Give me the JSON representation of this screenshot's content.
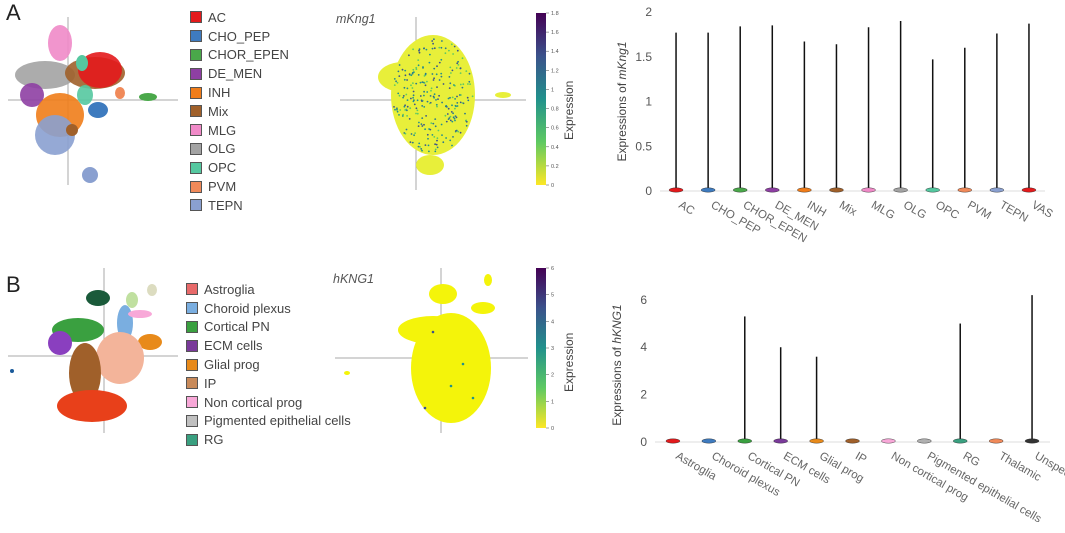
{
  "figure": {
    "panel_a": {
      "label": "A",
      "gene": "mKng1",
      "legend": [
        {
          "name": "AC",
          "color": "#e31a1c"
        },
        {
          "name": "CHO_PEP",
          "color": "#3e7bbf"
        },
        {
          "name": "CHOR_EPEN",
          "color": "#4aa84a"
        },
        {
          "name": "DE_MEN",
          "color": "#8e3fa3"
        },
        {
          "name": "INH",
          "color": "#f07d1a"
        },
        {
          "name": "Mix",
          "color": "#a0602a"
        },
        {
          "name": "MLG",
          "color": "#f08ac8"
        },
        {
          "name": "OLG",
          "color": "#a3a3a3"
        },
        {
          "name": "OPC",
          "color": "#55c8a0"
        },
        {
          "name": "PVM",
          "color": "#f08a5a"
        },
        {
          "name": "TEPN",
          "color": "#8aa0d0"
        }
      ],
      "colorbar": {
        "label": "Expression",
        "ticks": [
          "1.8",
          "1.6",
          "1.4",
          "1.2",
          "1",
          "0.8",
          "0.6",
          "0.4",
          "0.2",
          "0"
        ]
      }
    },
    "panel_b": {
      "label": "B",
      "gene": "hKNG1",
      "legend": [
        {
          "name": "Astroglia",
          "color": "#e86a6a"
        },
        {
          "name": "Choroid plexus",
          "color": "#7aaee0"
        },
        {
          "name": "Cortical PN",
          "color": "#3aa040"
        },
        {
          "name": "ECM cells",
          "color": "#7a3a9a"
        },
        {
          "name": "Glial prog",
          "color": "#e88a1a"
        },
        {
          "name": "IP",
          "color": "#c88a5a"
        },
        {
          "name": "Non cortical prog",
          "color": "#f8a8d8"
        },
        {
          "name": "Pigmented epithelial cells",
          "color": "#c0c0c0"
        },
        {
          "name": "RG",
          "color": "#3aa080"
        }
      ],
      "colorbar": {
        "label": "Expression",
        "ticks": [
          "6",
          "5",
          "4",
          "3",
          "2",
          "1",
          "0"
        ]
      }
    }
  },
  "chart_data": [
    {
      "type": "violin",
      "ylabel": "Expressions of mKng1",
      "ylabel_gene": "mKng1",
      "ylim": [
        0,
        2
      ],
      "yticks": [
        "0",
        "0.5",
        "1",
        "1.5",
        "2"
      ],
      "categories": [
        "AC",
        "CHO_PEP",
        "CHOR_EPEN",
        "DE_MEN",
        "INH",
        "Mix",
        "MLG",
        "OLG",
        "OPC",
        "PVM",
        "TEPN",
        "VAS"
      ],
      "max_values": [
        1.77,
        1.77,
        1.84,
        1.85,
        1.67,
        1.64,
        1.83,
        1.9,
        1.47,
        1.6,
        1.76,
        1.87
      ],
      "colors": [
        "#e31a1c",
        "#3e7bbf",
        "#4aa84a",
        "#8e3fa3",
        "#f07d1a",
        "#a0602a",
        "#f08ac8",
        "#a3a3a3",
        "#55c8a0",
        "#f08a5a",
        "#8aa0d0",
        "#e31a1c"
      ]
    },
    {
      "type": "violin",
      "ylabel": "Expressions of hKNG1",
      "ylabel_gene": "hKNG1",
      "ylim": [
        0,
        6.5
      ],
      "yticks": [
        "0",
        "2",
        "4",
        "6"
      ],
      "categories": [
        "Astroglia",
        "Choroid plexus",
        "Cortical PN",
        "ECM cells",
        "Glial prog",
        "IP",
        "Non cortical prog",
        "Pigmented epithelial cells",
        "RG",
        "Thalamic",
        "Unspecified PN"
      ],
      "max_values": [
        0.05,
        0.05,
        5.3,
        4.0,
        3.6,
        0.05,
        0.05,
        0.05,
        5.0,
        0.05,
        6.2
      ],
      "colors": [
        "#e31a1c",
        "#3e7bbf",
        "#3aa040",
        "#7a3a9a",
        "#e88a1a",
        "#a0602a",
        "#f8a8d8",
        "#b0b0b0",
        "#3aa080",
        "#f08a5a",
        "#333333"
      ]
    }
  ]
}
